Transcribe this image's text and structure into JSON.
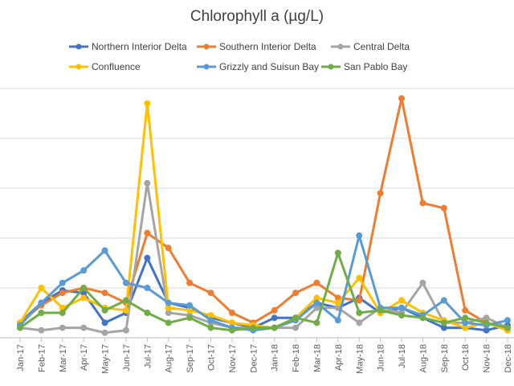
{
  "chart_data": {
    "type": "line",
    "title": "Chlorophyll a (µg/L)",
    "xlabel": "",
    "ylabel": "",
    "ylim": [
      0,
      50
    ],
    "grid": true,
    "legend_position": "top",
    "categories": [
      "Jan-17",
      "Feb-17",
      "Mar-17",
      "Apr-17",
      "May-17",
      "Jun-17",
      "Jul-17",
      "Aug-17",
      "Sep-17",
      "Oct-17",
      "Nov-17",
      "Dec-17",
      "Jan-18",
      "Feb-18",
      "Mar-18",
      "Apr-18",
      "May-18",
      "Jun-18",
      "Jul-18",
      "Aug-18",
      "Sep-18",
      "Oct-18",
      "Nov-18",
      "Dec-18"
    ],
    "series": [
      {
        "name": "Northern Interior Delta",
        "color": "#4472C4",
        "values": [
          3,
          7,
          9.5,
          9,
          3,
          5,
          16,
          7,
          6,
          4,
          3,
          2,
          4,
          4,
          7,
          6,
          8,
          5,
          6,
          4,
          2,
          2,
          1.5,
          2.5
        ]
      },
      {
        "name": "Southern Interior Delta",
        "color": "#ED7D31",
        "values": [
          3,
          6.5,
          9,
          10,
          9,
          7,
          21,
          18,
          11,
          9,
          5,
          3,
          5.5,
          9,
          11,
          8,
          7.5,
          29,
          48,
          27,
          26,
          5.5,
          3,
          1.5
        ]
      },
      {
        "name": "Central Delta",
        "color": "#A5A5A5",
        "values": [
          2,
          1.5,
          2,
          2,
          1,
          1.5,
          31,
          5,
          4.5,
          3,
          2,
          2,
          2,
          2,
          6,
          6,
          3,
          6,
          5,
          11,
          3,
          3,
          4,
          2
        ]
      },
      {
        "name": "Confluence",
        "color": "#FFC000",
        "values": [
          3,
          10,
          6,
          8,
          6,
          5.5,
          47,
          6,
          5.5,
          4.5,
          3,
          2.5,
          2,
          4,
          8,
          7,
          12,
          5,
          7.5,
          5,
          3.5,
          2,
          3,
          1.5
        ]
      },
      {
        "name": "Grizzly and Suisun Bay",
        "color": "#5B9BD5",
        "values": [
          2.5,
          7,
          11,
          13.5,
          17.5,
          11,
          10,
          7,
          6.5,
          3.5,
          2,
          1.5,
          2,
          3.5,
          7,
          3.5,
          20.5,
          6,
          6,
          4.5,
          7.5,
          3,
          2.5,
          3.5
        ]
      },
      {
        "name": "San Pablo Bay",
        "color": "#70AD47",
        "values": [
          2,
          5,
          5,
          10,
          5.5,
          7.5,
          5,
          3,
          4,
          2,
          1.5,
          2,
          2,
          4,
          3,
          17,
          5,
          5.5,
          4.5,
          4,
          3,
          4,
          3,
          2
        ]
      }
    ]
  }
}
